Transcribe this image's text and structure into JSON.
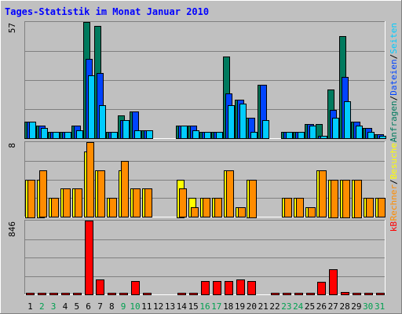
{
  "title": "Tages-Statistik im Monat Januar 2010",
  "colors": {
    "anfragen": "#007a5e",
    "dateien": "#0044ff",
    "seiten": "#00ccff",
    "besuche": "#ffff00",
    "rechner": "#ff8c00",
    "kb": "#ff0000",
    "weekday_label": "#000000",
    "weekend_label": "#00a050"
  },
  "chart_data": {
    "type": "bar",
    "title": "Tages-Statistik im Monat Januar 2010",
    "x": [
      "1",
      "2",
      "3",
      "4",
      "5",
      "6",
      "7",
      "8",
      "9",
      "10",
      "11",
      "12",
      "13",
      "14",
      "15",
      "16",
      "17",
      "18",
      "19",
      "20",
      "21",
      "22",
      "23",
      "24",
      "25",
      "26",
      "27",
      "28",
      "29",
      "30",
      "31"
    ],
    "weekend_days": [
      "2",
      "3",
      "9",
      "10",
      "16",
      "17",
      "23",
      "24",
      "30",
      "31"
    ],
    "panels": [
      {
        "max_label": "57",
        "ymax": 57,
        "legend": [
          "Anfragen",
          "Dateien",
          "Seiten"
        ],
        "legend_separator": "/",
        "series": [
          {
            "name": "Anfragen",
            "values": [
              8,
              6,
              3,
              3,
              6,
              57,
              55,
              3,
              11,
              13,
              4,
              0,
              0,
              6,
              6,
              3,
              3,
              40,
              19,
              10,
              26,
              0,
              3,
              3,
              7,
              7,
              24,
              50,
              8,
              5,
              2
            ]
          },
          {
            "name": "Dateien",
            "values": [
              8,
              6,
              3,
              3,
              6,
              39,
              32,
              3,
              9,
              13,
              4,
              0,
              0,
              6,
              6,
              3,
              3,
              22,
              19,
              10,
              26,
              0,
              3,
              3,
              7,
              1,
              14,
              30,
              8,
              5,
              2
            ]
          },
          {
            "name": "Seiten",
            "values": [
              8,
              5,
              3,
              3,
              4,
              31,
              16,
              3,
              9,
              4,
              4,
              0,
              0,
              6,
              4,
              3,
              3,
              16,
              17,
              3,
              9,
              0,
              3,
              3,
              6,
              1,
              10,
              18,
              6,
              3,
              1
            ]
          }
        ]
      },
      {
        "max_label": "8",
        "ymax": 8,
        "legend": [
          "Rechner",
          "Besuche"
        ],
        "legend_separator": "/",
        "series": [
          {
            "name": "Besuche",
            "values": [
              4,
              4,
              2,
              3,
              3,
              7,
              5,
              2,
              5,
              3,
              3,
              0,
              0,
              4,
              2,
              2,
              2,
              5,
              1,
              4,
              0,
              0,
              2,
              2,
              1,
              5,
              4,
              4,
              4,
              2,
              2
            ]
          },
          {
            "name": "Rechner",
            "values": [
              4,
              5,
              2,
              3,
              3,
              8,
              5,
              2,
              6,
              3,
              3,
              0,
              0,
              3,
              1,
              2,
              2,
              5,
              1,
              4,
              0,
              0,
              2,
              2,
              1,
              5,
              4,
              4,
              4,
              2,
              2
            ]
          }
        ]
      },
      {
        "max_label": "846",
        "ymax": 846,
        "legend": [
          "kB"
        ],
        "series": [
          {
            "name": "kB",
            "values": [
              12,
              12,
              12,
              12,
              12,
              846,
              172,
              10,
              12,
              155,
              12,
              0,
              0,
              12,
              12,
              155,
              155,
              155,
              172,
              155,
              0,
              12,
              12,
              12,
              12,
              140,
              290,
              25,
              20,
              20,
              12
            ]
          }
        ]
      }
    ]
  }
}
